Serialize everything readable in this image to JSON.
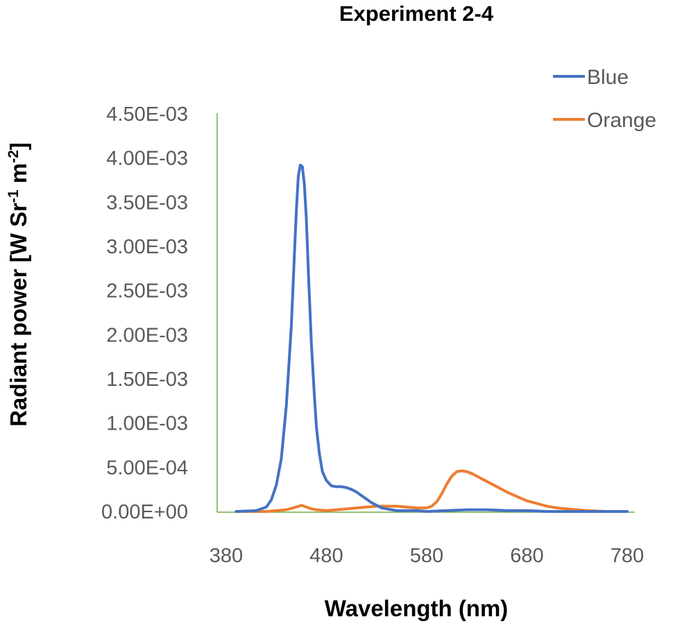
{
  "chart_data": {
    "type": "line",
    "title": "Experiment 2-4",
    "xlabel": "Wavelength (nm)",
    "ylabel": {
      "base": "Radiant power [W Sr",
      "sup1": "-1",
      "mid": " m",
      "sup2": "-2",
      "end": "]"
    },
    "xlim": [
      380,
      780
    ],
    "ylim": [
      0,
      0.0045
    ],
    "x_ticks": [
      380,
      480,
      580,
      680,
      780
    ],
    "x_tick_labels": [
      "380",
      "480",
      "580",
      "680",
      "780"
    ],
    "y_ticks": [
      0,
      0.0005,
      0.001,
      0.0015,
      0.002,
      0.0025,
      0.003,
      0.0035,
      0.004,
      0.0045
    ],
    "y_tick_labels": [
      "0.00E+00",
      "5.00E-04",
      "1.00E-03",
      "1.50E-03",
      "2.00E-03",
      "2.50E-03",
      "3.00E-03",
      "3.50E-03",
      "4.00E-03",
      "4.50E-03"
    ],
    "grid": false,
    "legend_position": "top-right",
    "series": [
      {
        "name": "Blue",
        "color": "#4472C4",
        "x": [
          390,
          410,
          420,
          425,
          430,
          435,
          440,
          445,
          448,
          450,
          452,
          454,
          456,
          458,
          460,
          462,
          465,
          468,
          470,
          473,
          476,
          480,
          485,
          490,
          495,
          500,
          505,
          510,
          515,
          520,
          525,
          530,
          535,
          540,
          545,
          550,
          555,
          560,
          570,
          580,
          600,
          620,
          640,
          660,
          680,
          700,
          720,
          740,
          760,
          780
        ],
        "y": [
          0,
          1e-05,
          5e-05,
          0.00013,
          0.0003,
          0.0006,
          0.0012,
          0.0021,
          0.0029,
          0.0034,
          0.0038,
          0.00392,
          0.0039,
          0.0037,
          0.0033,
          0.0027,
          0.0019,
          0.0013,
          0.00095,
          0.00065,
          0.00045,
          0.00035,
          0.00029,
          0.00028,
          0.00028,
          0.00027,
          0.00025,
          0.00022,
          0.00018,
          0.00014,
          0.0001,
          7e-05,
          4e-05,
          3e-05,
          2e-05,
          1e-05,
          1e-05,
          1e-05,
          1e-05,
          0,
          1e-05,
          2e-05,
          2e-05,
          1e-05,
          1e-05,
          0,
          0,
          0,
          0,
          0
        ]
      },
      {
        "name": "Orange",
        "color": "#ED7D31",
        "x": [
          390,
          420,
          440,
          450,
          455,
          460,
          465,
          470,
          480,
          490,
          500,
          510,
          520,
          530,
          540,
          550,
          560,
          570,
          580,
          585,
          590,
          595,
          600,
          605,
          610,
          615,
          620,
          625,
          630,
          640,
          650,
          660,
          670,
          680,
          690,
          700,
          710,
          720,
          730,
          740,
          760,
          780
        ],
        "y": [
          0,
          0,
          2e-05,
          5e-05,
          7e-05,
          5e-05,
          3e-05,
          2e-05,
          1e-05,
          2e-05,
          3e-05,
          4e-05,
          5e-05,
          6e-05,
          6e-05,
          6e-05,
          5e-05,
          4e-05,
          4e-05,
          6e-05,
          0.00011,
          0.0002,
          0.00031,
          0.0004,
          0.00045,
          0.00046,
          0.00045,
          0.00043,
          0.0004,
          0.00034,
          0.00028,
          0.00022,
          0.00017,
          0.00012,
          9e-05,
          6e-05,
          4e-05,
          3e-05,
          2e-05,
          1e-05,
          0,
          0
        ]
      }
    ]
  }
}
